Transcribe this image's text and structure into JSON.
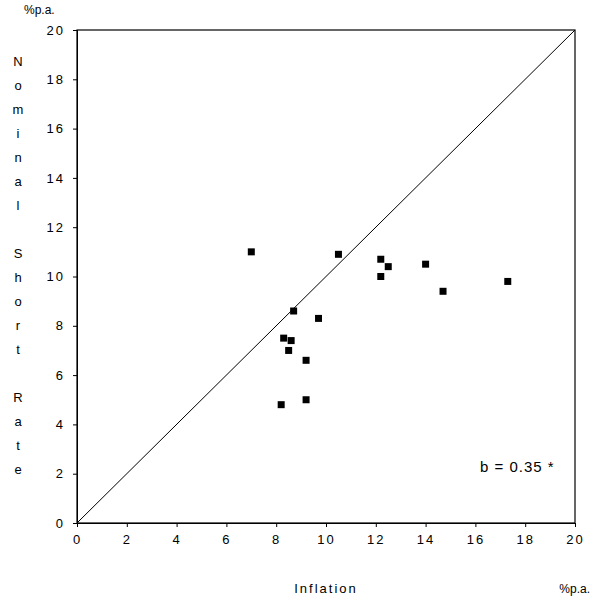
{
  "chart_data": {
    "type": "scatter",
    "x_label": "Inflation",
    "y_label": "Nominal Short Rate",
    "x_unit_label": "%p.a.",
    "y_unit_label": "%p.a.",
    "annotations": [
      "b = 0.35 *"
    ],
    "x": [
      7.0,
      10.5,
      12.2,
      12.2,
      12.5,
      14.0,
      14.7,
      17.3,
      8.7,
      9.7,
      8.3,
      8.6,
      8.5,
      9.2,
      8.2,
      9.2
    ],
    "values": [
      11.0,
      10.9,
      10.7,
      10.0,
      10.4,
      10.5,
      9.4,
      9.8,
      8.6,
      8.3,
      7.5,
      7.4,
      7.0,
      6.6,
      4.8,
      5.0
    ],
    "color": "#000000",
    "marker": "square",
    "xlim": [
      0,
      20
    ],
    "ylim": [
      0,
      20
    ],
    "xticks": [
      0,
      2,
      4,
      6,
      8,
      10,
      12,
      14,
      16,
      18,
      20
    ],
    "yticks": [
      0,
      2,
      4,
      6,
      8,
      10,
      12,
      14,
      16,
      18,
      20
    ],
    "grid": false
  }
}
